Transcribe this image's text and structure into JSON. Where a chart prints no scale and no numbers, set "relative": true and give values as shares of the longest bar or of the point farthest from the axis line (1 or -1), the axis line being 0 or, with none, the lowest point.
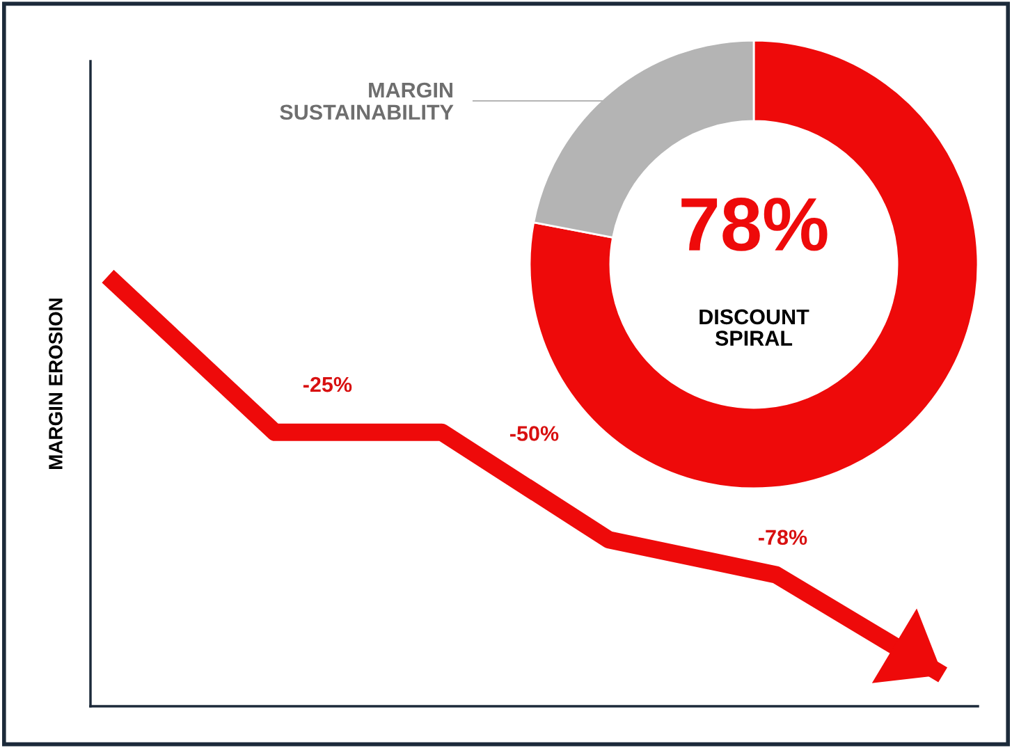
{
  "chart_data": [
    {
      "type": "line",
      "relative": true,
      "ylabel": "MARGIN EROSION",
      "line_style": "solid",
      "categories": [
        null,
        null,
        null,
        null,
        null,
        null
      ],
      "annotations": [
        "-25%",
        "-50%",
        "-78%"
      ],
      "series": [
        {
          "color": "#ee0a0a",
          "values": [
            1,
            0.637,
            0.637,
            0.387,
            0.306,
            0.073
          ]
        }
      ]
    },
    {
      "type": "donut",
      "categories": [
        "DISCOUNT SPIRAL",
        "MARGIN SUSTAINABILITY"
      ],
      "values": [
        78,
        22
      ],
      "colors": [
        "#ee0a0a",
        "#b4b4b4"
      ],
      "value_labels": [
        "78%",
        null
      ]
    }
  ]
}
